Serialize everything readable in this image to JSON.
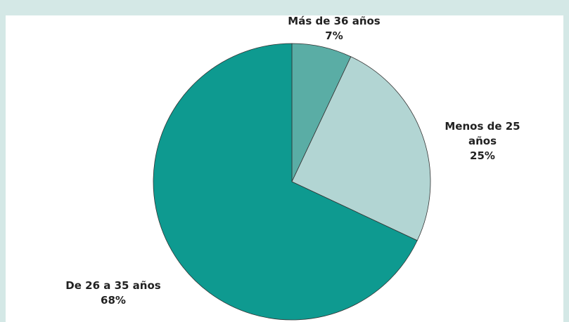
{
  "chart_data": {
    "type": "pie",
    "categories": [
      "Más de 36 años",
      "Menos de 25 años",
      "De 26 a 35 años"
    ],
    "values": [
      7,
      25,
      68
    ],
    "value_labels": [
      "7%",
      "25%",
      "68%"
    ],
    "colors": [
      "#5aada5",
      "#b2d5d3",
      "#0e9a90"
    ]
  }
}
